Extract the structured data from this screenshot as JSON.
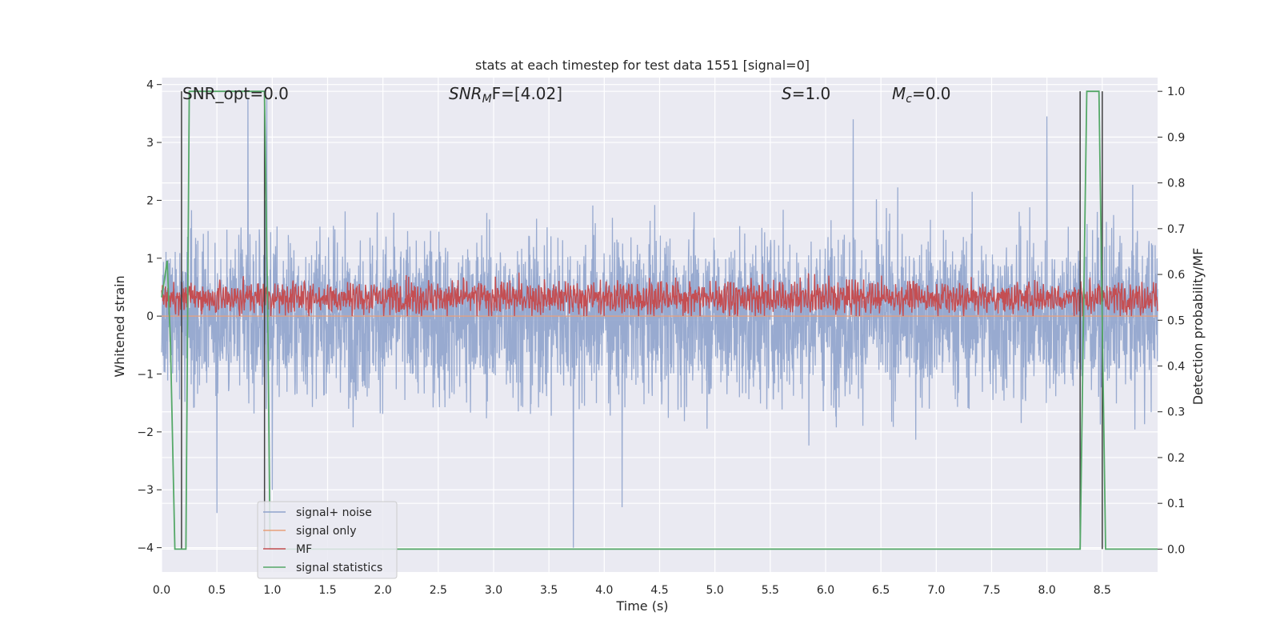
{
  "chart_data": {
    "type": "line",
    "title": "stats at each timestep for test data 1551 [signal=0]",
    "xlabel": "Time (s)",
    "ylabel_left": "Whitened strain",
    "ylabel_right": "Detection probability/MF",
    "xlim": [
      0.0,
      9.0
    ],
    "ylim_left": [
      -4.42,
      4.12
    ],
    "ylim_right": [
      -0.05,
      1.03
    ],
    "xticks": [
      "0.0",
      "0.5",
      "1.0",
      "1.5",
      "2.0",
      "2.5",
      "3.0",
      "3.5",
      "4.0",
      "4.5",
      "5.0",
      "5.5",
      "6.0",
      "6.5",
      "7.0",
      "7.5",
      "8.0",
      "8.5"
    ],
    "yticks_left": [
      "−4",
      "−3",
      "−2",
      "−1",
      "0",
      "1",
      "2",
      "3",
      "4"
    ],
    "yticks_right": [
      "0.0",
      "0.1",
      "0.2",
      "0.3",
      "0.4",
      "0.5",
      "0.6",
      "0.7",
      "0.8",
      "0.9",
      "1.0"
    ],
    "grid": true,
    "legend_position": "lower-left",
    "annotations": {
      "snr_opt": "SNR_opt=0.0",
      "snr_mf_base": "SNR",
      "snr_mf_sub": "M",
      "snr_mf_rest": "F=[4.02]",
      "s_var": "S",
      "s_rest": "=1.0",
      "mc_var": "M",
      "mc_sub": "c",
      "mc_rest": "=0.0"
    },
    "series": [
      {
        "name": "signal+ noise",
        "axis": "left",
        "color": "#8fa3cc",
        "description": "noisy whitened strain, roughly within -2.5 to 2.5 with spikes to about ±4",
        "amplitude_sigma": 0.95,
        "extremes": [
          [
            0.78,
            3.75
          ],
          [
            1.0,
            -3.0
          ],
          [
            3.72,
            -4.0
          ],
          [
            4.16,
            -3.3
          ],
          [
            0.5,
            -3.4
          ],
          [
            6.25,
            3.4
          ],
          [
            8.0,
            3.45
          ],
          [
            0.95,
            3.75
          ]
        ]
      },
      {
        "name": "signal only",
        "axis": "left",
        "color": "#e8a07a",
        "values": "0 everywhere"
      },
      {
        "name": "MF",
        "axis": "left",
        "color": "#c44e52",
        "description": "matched-filter output oscillating roughly between 0.0 and 0.9",
        "range": [
          0.0,
          0.9
        ]
      },
      {
        "name": "signal statistics",
        "axis": "right",
        "color": "#55a868",
        "x": [
          0.0,
          0.02,
          0.05,
          0.08,
          0.12,
          0.17,
          0.22,
          0.25,
          0.93,
          0.96,
          0.98,
          8.3,
          8.33,
          8.36,
          8.47,
          8.5,
          8.53,
          9.0
        ],
        "y": [
          0.55,
          0.58,
          0.63,
          0.45,
          0.0,
          0.0,
          0.0,
          1.0,
          1.0,
          0.5,
          0.0,
          0.0,
          0.5,
          1.0,
          1.0,
          0.5,
          0.0,
          0.0
        ]
      }
    ],
    "vertical_lines": [
      {
        "x": 0.18,
        "color": "#404040"
      },
      {
        "x": 0.93,
        "color": "#404040"
      },
      {
        "x": 8.3,
        "color": "#404040"
      },
      {
        "x": 8.5,
        "color": "#404040"
      }
    ],
    "legend": [
      "signal+ noise",
      "signal only",
      "MF",
      "signal statistics"
    ]
  }
}
